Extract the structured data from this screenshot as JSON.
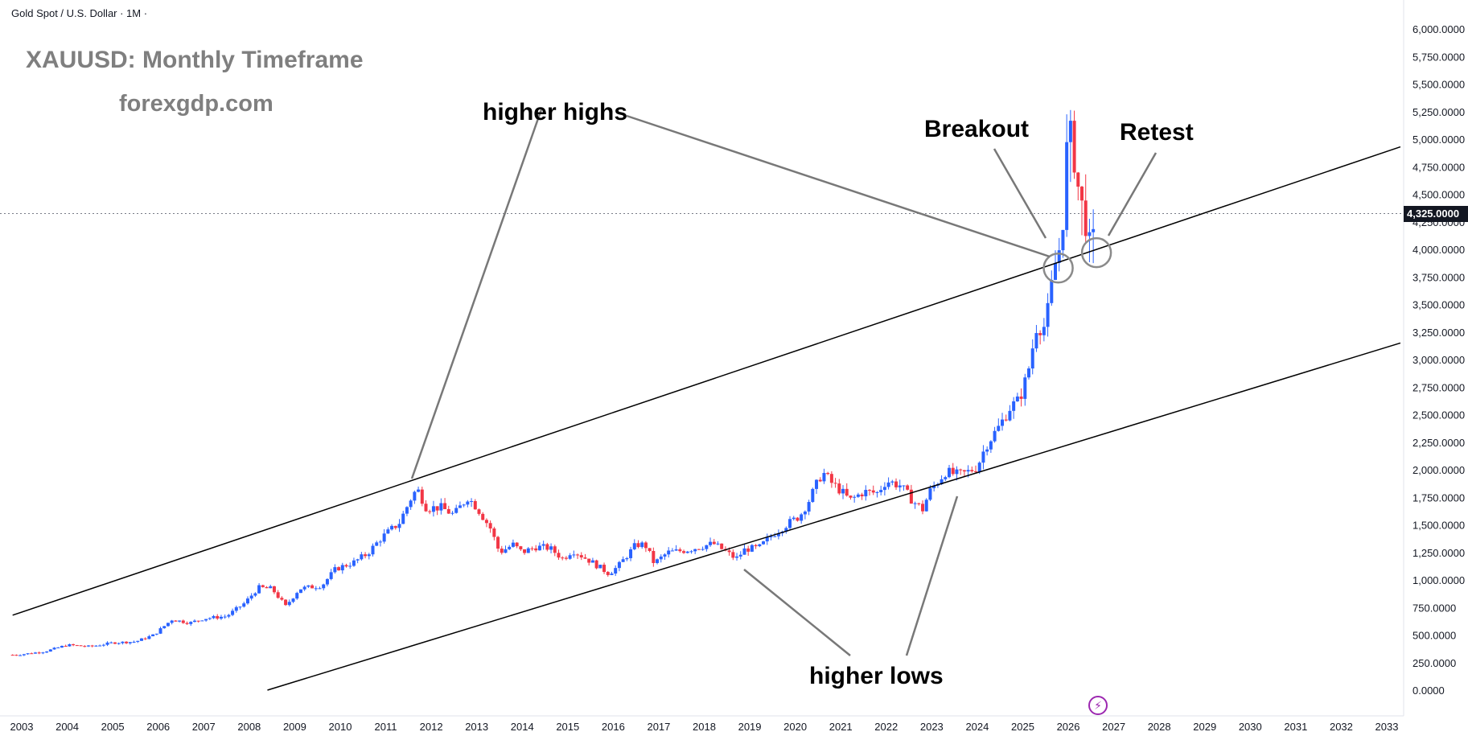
{
  "header": {
    "symbol_line": "Gold Spot / U.S. Dollar · 1M ·",
    "title": "XAUUSD: Monthly Timeframe",
    "site": "forexgdp.com"
  },
  "annotations": {
    "higher_highs": "higher highs",
    "higher_lows": "higher lows",
    "breakout": "Breakout",
    "retest": "Retest"
  },
  "last_price_label": "4,325.0000",
  "colors": {
    "up": "#2962ff",
    "down": "#f23645",
    "trendline": "#000000",
    "pointer": "#787878",
    "axis_text": "#131722"
  },
  "icons": {
    "bottom": "lightning-bolt-icon"
  },
  "chart_data": {
    "type": "candlestick",
    "title": "XAUUSD: Monthly Timeframe",
    "xlabel": "",
    "ylabel": "",
    "x_tick_labels": [
      "2003",
      "2004",
      "2005",
      "2006",
      "2007",
      "2008",
      "2009",
      "2010",
      "2011",
      "2012",
      "2013",
      "2014",
      "2015",
      "2016",
      "2017",
      "2018",
      "2019",
      "2020",
      "2021",
      "2022",
      "2023",
      "2024",
      "2025",
      "2026",
      "2027",
      "2028",
      "2029",
      "2030",
      "2031",
      "2032",
      "2033"
    ],
    "y_tick_labels": [
      "6,000.0000",
      "5,750.0000",
      "5,500.0000",
      "5,250.0000",
      "5,000.0000",
      "4,750.0000",
      "4,500.0000",
      "4,250.0000",
      "4,000.0000",
      "3,750.0000",
      "3,500.0000",
      "3,250.0000",
      "3,000.0000",
      "2,750.0000",
      "2,500.0000",
      "2,250.0000",
      "2,000.0000",
      "1,750.0000",
      "1,500.0000",
      "1,250.0000",
      "1,000.0000",
      "750.0000",
      "500.0000",
      "250.0000",
      "0.0000"
    ],
    "ylim": [
      0,
      6000
    ],
    "last_price": 4325,
    "price_series": {
      "name": "",
      "points": [
        [
          2002.9,
          320
        ],
        [
          2003.5,
          350
        ],
        [
          2004.0,
          410
        ],
        [
          2004.5,
          395
        ],
        [
          2005.0,
          430
        ],
        [
          2005.5,
          440
        ],
        [
          2005.9,
          500
        ],
        [
          2006.3,
          640
        ],
        [
          2006.7,
          610
        ],
        [
          2007.0,
          650
        ],
        [
          2007.5,
          670
        ],
        [
          2007.9,
          790
        ],
        [
          2008.2,
          930
        ],
        [
          2008.5,
          920
        ],
        [
          2008.8,
          760
        ],
        [
          2009.1,
          920
        ],
        [
          2009.6,
          950
        ],
        [
          2009.9,
          1100
        ],
        [
          2010.3,
          1160
        ],
        [
          2010.6,
          1240
        ],
        [
          2010.9,
          1380
        ],
        [
          2011.3,
          1520
        ],
        [
          2011.6,
          1780
        ],
        [
          2011.7,
          1820
        ],
        [
          2011.9,
          1650
        ],
        [
          2012.2,
          1660
        ],
        [
          2012.5,
          1590
        ],
        [
          2012.8,
          1750
        ],
        [
          2013.0,
          1660
        ],
        [
          2013.3,
          1470
        ],
        [
          2013.5,
          1250
        ],
        [
          2013.8,
          1320
        ],
        [
          2014.0,
          1250
        ],
        [
          2014.3,
          1300
        ],
        [
          2014.6,
          1290
        ],
        [
          2014.9,
          1190
        ],
        [
          2015.1,
          1270
        ],
        [
          2015.5,
          1170
        ],
        [
          2015.9,
          1060
        ],
        [
          2016.1,
          1120
        ],
        [
          2016.5,
          1320
        ],
        [
          2016.7,
          1320
        ],
        [
          2016.9,
          1150
        ],
        [
          2017.2,
          1250
        ],
        [
          2017.6,
          1270
        ],
        [
          2017.9,
          1300
        ],
        [
          2018.2,
          1330
        ],
        [
          2018.5,
          1250
        ],
        [
          2018.7,
          1190
        ],
        [
          2018.9,
          1280
        ],
        [
          2019.2,
          1290
        ],
        [
          2019.5,
          1410
        ],
        [
          2019.8,
          1500
        ],
        [
          2020.1,
          1580
        ],
        [
          2020.3,
          1720
        ],
        [
          2020.6,
          1980
        ],
        [
          2020.8,
          1880
        ],
        [
          2021.0,
          1810
        ],
        [
          2021.2,
          1720
        ],
        [
          2021.5,
          1800
        ],
        [
          2021.8,
          1790
        ],
        [
          2022.0,
          1900
        ],
        [
          2022.3,
          1860
        ],
        [
          2022.6,
          1710
        ],
        [
          2022.8,
          1640
        ],
        [
          2022.95,
          1800
        ],
        [
          2023.3,
          1980
        ],
        [
          2023.6,
          1950
        ],
        [
          2023.8,
          1980
        ],
        [
          2024.0,
          2030
        ],
        [
          2024.2,
          2230
        ],
        [
          2024.5,
          2400
        ],
        [
          2024.7,
          2560
        ],
        [
          2024.9,
          2620
        ],
        [
          2025.1,
          2850
        ],
        [
          2025.3,
          3300
        ],
        [
          2025.5,
          3300
        ],
        [
          2025.7,
          3850
        ],
        [
          2025.8,
          4000
        ],
        [
          2025.9,
          4320
        ],
        [
          2026.0,
          5200
        ],
        [
          2026.1,
          4900
        ],
        [
          2026.2,
          4600
        ],
        [
          2026.35,
          4300
        ],
        [
          2026.45,
          4050
        ],
        [
          2026.55,
          4100
        ],
        [
          2026.6,
          4325
        ]
      ]
    },
    "trendlines": [
      {
        "name": "",
        "x": [
          2002.8,
          2033.3
        ],
        "y": [
          680,
          4930
        ]
      },
      {
        "name": "",
        "x": [
          2008.4,
          2033.3
        ],
        "y": [
          0,
          3150
        ]
      }
    ],
    "circled_points": [
      {
        "x": 2025.78,
        "y": 3830
      },
      {
        "x": 2026.62,
        "y": 3970
      }
    ]
  }
}
